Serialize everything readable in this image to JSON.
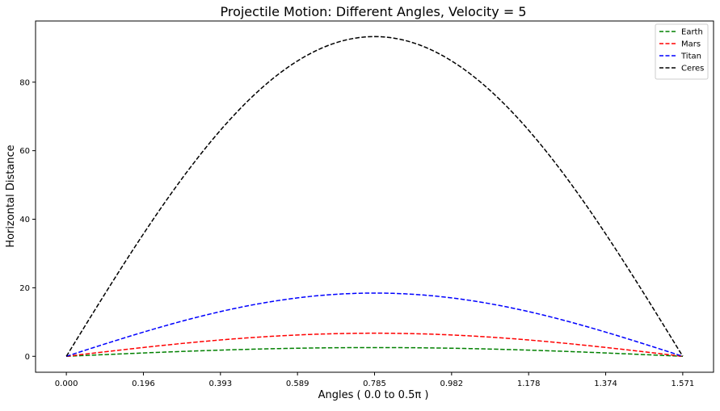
{
  "chart_data": {
    "type": "line",
    "title": "Projectile Motion: Different Angles, Velocity = 5",
    "xlabel": "Angles ( 0.0 to 0.5π )",
    "ylabel": "Horizontal Distance",
    "xlim": [
      -0.0785,
      1.6493
    ],
    "ylim": [
      -4.65,
      97.85
    ],
    "x_ticks": [
      "0.000",
      "0.196",
      "0.393",
      "0.589",
      "0.785",
      "0.982",
      "1.178",
      "1.374",
      "1.571"
    ],
    "x_tick_values": [
      0.0,
      0.19635,
      0.3927,
      0.58905,
      0.7854,
      0.98175,
      1.1781,
      1.37445,
      1.5708
    ],
    "y_ticks": [
      "0",
      "20",
      "40",
      "60",
      "80"
    ],
    "y_tick_values": [
      0,
      20,
      40,
      60,
      80
    ],
    "x_range": [
      0.0,
      1.5708
    ],
    "curve": "max_distance * sin(2 * angle)",
    "grid": false,
    "legend_position": "top-right",
    "series": [
      {
        "name": "Earth",
        "color": "#008000",
        "max_distance": 2.55
      },
      {
        "name": "Mars",
        "color": "#ff0000",
        "max_distance": 6.74
      },
      {
        "name": "Titan",
        "color": "#0000ff",
        "max_distance": 18.45
      },
      {
        "name": "Ceres",
        "color": "#000000",
        "max_distance": 93.3
      }
    ]
  }
}
